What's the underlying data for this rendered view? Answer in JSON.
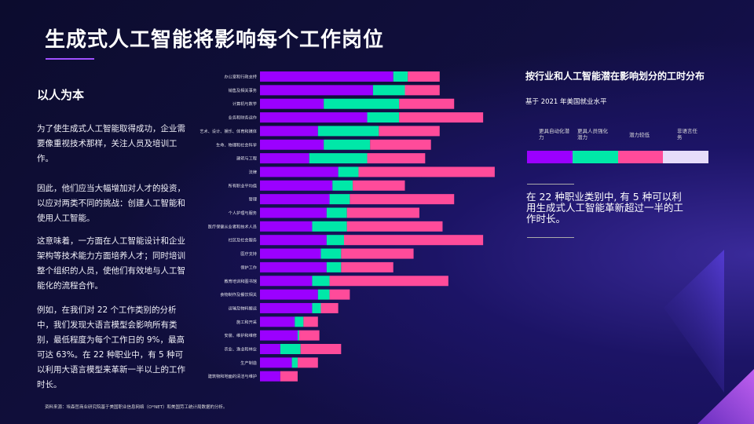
{
  "title": "生成式人工智能将影响每个工作岗位",
  "left": {
    "heading": "以人为本",
    "paragraphs": [
      "为了使生成式人工智能取得成功，企业需要像重视技术那样，关注人员及培训工作。",
      "因此，他们应当大幅增加对人才的投资，以应对两类不同的挑战：创建人工智能和使用人工智能。",
      "这意味着，一方面在人工智能设计和企业架构等技术能力方面培养人才；同时培训整个组织的人员，使他们有效地与人工智能化的流程合作。",
      "例如，在我们对 22 个工作类别的分析中，我们发现大语言模型会影响所有类别，最低程度为每个工作日的 9%，最高可达 63%。在 22 种职业中，有 5 种可以利用大语言模型来革新一半以上的工作时长。"
    ]
  },
  "source": "资料来源：埃森哲商业研究院基于美国职业信息网络（O*NET）和美国劳工统计局数据的分析。",
  "right": {
    "title": "按行业和人工智能潜在影响划分的工时分布",
    "subtitle": "基于 2021  年美国就业水平",
    "legend": [
      {
        "label": "更具自动化潜力",
        "color": "#9b00ff"
      },
      {
        "label": "更具人员强化潜力",
        "color": "#00e8a8"
      },
      {
        "label": "潜力较低",
        "color": "#ff4b9a"
      },
      {
        "label": "非语言任务",
        "color": "#e6dcfa"
      }
    ],
    "note": "在 22 种职业类别中, 有 5 种可以利用生成式人工智能革新超过一半的工作时长。"
  },
  "chart_data": {
    "type": "bar",
    "orientation": "horizontal",
    "stacked": true,
    "unit": "%",
    "categories": [
      "办公室和行政支持",
      "销售及相关事务",
      "计算机与数学",
      "业务和财务运作",
      "艺术、设计、娱乐、体育和媒体",
      "生命、物理和社会科学",
      "建筑与工程",
      "法律",
      "所有职业平均值",
      "管理",
      "个人护理与服务",
      "医疗保健从业者和技术人员",
      "社区及社会服务",
      "医疗支持",
      "保护工作",
      "教育培训和图书馆",
      "食物制作及餐饮相关",
      "运输及物料搬运",
      "施工和开采",
      "安装、维护和维修",
      "农业、渔业和林业",
      "生产制造",
      "建筑物和地面的清洁与维护"
    ],
    "series": [
      {
        "name": "更具自动化潜力",
        "color": "#9b00ff",
        "values": [
          46,
          39,
          22,
          37,
          20,
          22,
          17,
          27,
          25,
          24,
          23,
          18,
          23,
          21,
          23,
          18,
          20,
          18,
          12,
          13,
          7,
          11,
          7
        ]
      },
      {
        "name": "更具人员强化潜力",
        "color": "#00e8a8",
        "values": [
          5,
          11,
          26,
          11,
          21,
          16,
          20,
          7,
          7,
          7,
          7,
          12,
          6,
          7,
          5,
          6,
          4,
          3,
          3,
          0.5,
          7,
          2,
          0
        ]
      },
      {
        "name": "潜力较低",
        "color": "#ff4b9a",
        "values": [
          11,
          12,
          19,
          29,
          21,
          21,
          20,
          47,
          18,
          36,
          25,
          33,
          48,
          25,
          18,
          41,
          7,
          6,
          5,
          7,
          14,
          7,
          6
        ]
      }
    ],
    "axes_visible": false,
    "grid": false
  }
}
